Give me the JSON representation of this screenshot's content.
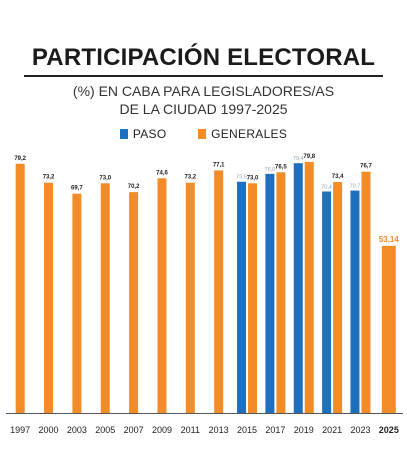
{
  "header": {
    "title": "PARTICIPACIÓN ELECTORAL",
    "subtitle_line1": "(%) EN CABA PARA LEGISLADORES/AS",
    "subtitle_line2": "DE LA CIUDAD 1997-2025"
  },
  "colors": {
    "paso": "#1f6fbf",
    "generales": "#f28c28",
    "highlight": "#f28c28"
  },
  "chart_data": {
    "type": "bar",
    "categories": [
      "1997",
      "2000",
      "2003",
      "2005",
      "2007",
      "2009",
      "2011",
      "2013",
      "2015",
      "2017",
      "2019",
      "2021",
      "2023",
      "2025"
    ],
    "series": [
      {
        "name": "PASO",
        "values": [
          null,
          null,
          null,
          null,
          null,
          null,
          null,
          null,
          73.5,
          76.0,
          79.4,
          70.4,
          70.7,
          null
        ],
        "labels": [
          "",
          "",
          "",
          "",
          "",
          "",
          "",
          "",
          "73,5",
          "76,0",
          "79,4",
          "70,4",
          "70,7",
          ""
        ]
      },
      {
        "name": "GENERALES",
        "values": [
          79.2,
          73.2,
          69.7,
          73.0,
          70.2,
          74.6,
          73.2,
          77.1,
          73.0,
          76.5,
          79.8,
          73.4,
          76.7,
          53.14
        ],
        "labels": [
          "79,2",
          "73,2",
          "69,7",
          "73,0",
          "70,2",
          "74,6",
          "73,2",
          "77,1",
          "73,0",
          "76,5",
          "79,8",
          "73,4",
          "76,7",
          "53,14"
        ]
      }
    ],
    "ylim": [
      0,
      82
    ],
    "grid": false,
    "legend_position": "top-center"
  }
}
